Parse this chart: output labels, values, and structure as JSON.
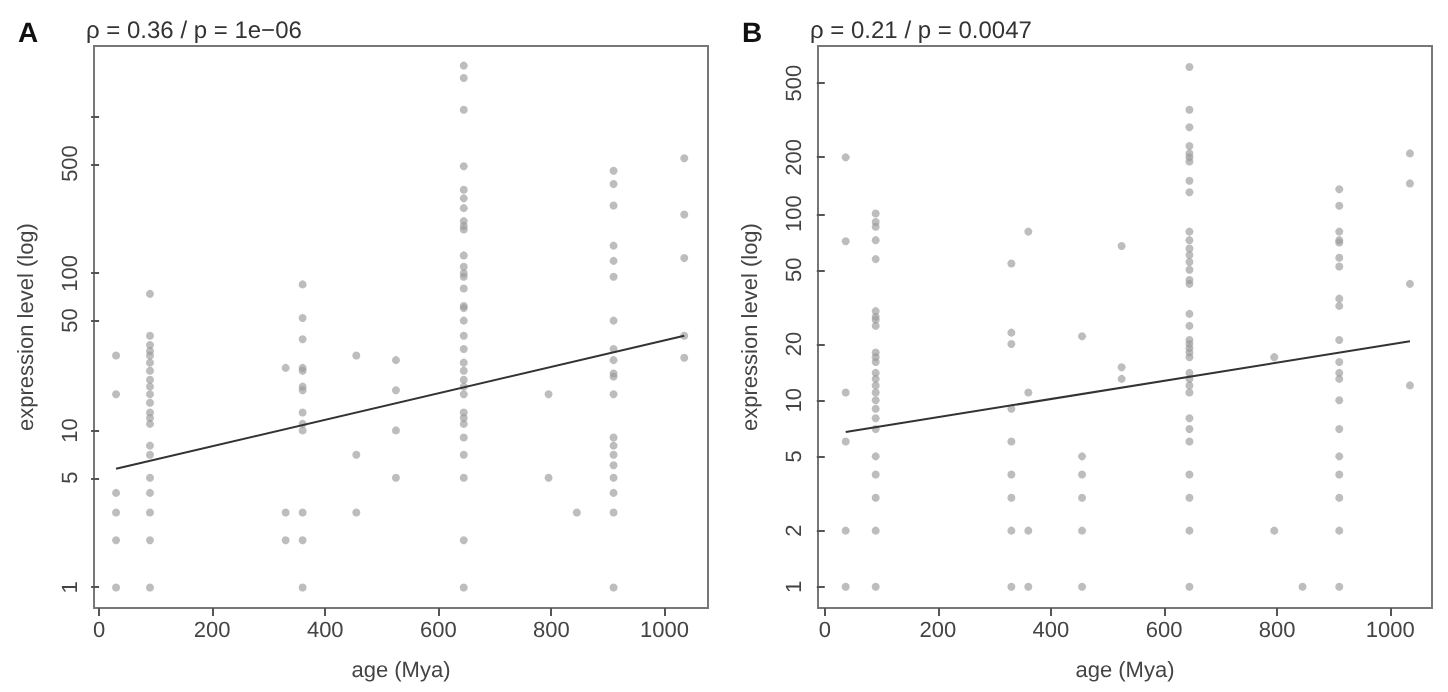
{
  "chart_data": [
    {
      "type": "scatter",
      "title": "ρ = 0.36 / p = 1e−06",
      "annotations": [
        "A"
      ],
      "xlabel": "age (Mya)",
      "ylabel": "expression level (log)",
      "log": "y",
      "grid": false,
      "xlim": [
        -9,
        1077
      ],
      "xticks": [
        0,
        200,
        400,
        600,
        800,
        1000
      ],
      "ylim": [
        0.74,
        2800
      ],
      "yticks": [
        1,
        5,
        10,
        50,
        100,
        500,
        {
          "value": 1000,
          "label": null
        }
      ],
      "series": [
        {
          "color": "#9a9a9a",
          "marker": "circle",
          "x": [
            30,
            30,
            30,
            30,
            30,
            30,
            90,
            90,
            90,
            90,
            90,
            90,
            90,
            90,
            90,
            90,
            90,
            90,
            90,
            90,
            90,
            90,
            90,
            90,
            90,
            90,
            90,
            330,
            330,
            330,
            360,
            360,
            360,
            360,
            360,
            360,
            360,
            360,
            360,
            360,
            360,
            360,
            360,
            455,
            455,
            455,
            525,
            525,
            525,
            525,
            645,
            645,
            645,
            645,
            645,
            645,
            645,
            645,
            645,
            645,
            645,
            645,
            645,
            645,
            645,
            645,
            645,
            645,
            645,
            645,
            645,
            645,
            645,
            645,
            645,
            645,
            645,
            645,
            645,
            645,
            645,
            645,
            645,
            795,
            795,
            845,
            910,
            910,
            910,
            910,
            910,
            910,
            910,
            910,
            910,
            910,
            910,
            910,
            910,
            910,
            910,
            910,
            910,
            910,
            910,
            910,
            1035,
            1035,
            1035,
            1035,
            1035
          ],
          "values": [
            1,
            2,
            3,
            4,
            17,
            30,
            1,
            2,
            3,
            4,
            5,
            7,
            8,
            11,
            12,
            13,
            15,
            17,
            19,
            21,
            24,
            27,
            30,
            32,
            35,
            40,
            74,
            2,
            3,
            25,
            1,
            2,
            3,
            10,
            11,
            13,
            18,
            19,
            24,
            25,
            38,
            52,
            85,
            3,
            7,
            30,
            5,
            10,
            18,
            28,
            1,
            2,
            5,
            7,
            9,
            11,
            12,
            13,
            17,
            19,
            21,
            24,
            27,
            33,
            40,
            50,
            60,
            62,
            80,
            95,
            100,
            110,
            130,
            190,
            200,
            215,
            260,
            300,
            340,
            480,
            1100,
            1750,
            2100,
            5,
            17,
            3,
            1,
            3,
            4,
            5,
            6,
            7,
            8,
            9,
            17,
            22,
            23,
            28,
            33,
            50,
            95,
            120,
            150,
            270,
            370,
            450,
            29,
            40,
            125,
            237,
            540
          ]
        },
        {
          "type": "line",
          "marker": "none",
          "color": "#333333",
          "x": [
            30,
            1035
          ],
          "values": [
            5.7,
            40
          ]
        }
      ]
    },
    {
      "type": "scatter",
      "title": "ρ = 0.21 / p = 0.0047",
      "annotations": [
        "B"
      ],
      "xlabel": "age (Mya)",
      "ylabel": "expression level (log)",
      "log": "y",
      "grid": false,
      "xlim": [
        -12,
        1074
      ],
      "xticks": [
        0,
        200,
        400,
        600,
        800,
        1000
      ],
      "ylim": [
        0.77,
        790
      ],
      "yticks": [
        1,
        2,
        5,
        10,
        20,
        50,
        100,
        200,
        500
      ],
      "series": [
        {
          "color": "#9a9a9a",
          "marker": "circle",
          "x": [
            37,
            37,
            37,
            37,
            37,
            37,
            90,
            90,
            90,
            90,
            90,
            90,
            90,
            90,
            90,
            90,
            90,
            90,
            90,
            90,
            90,
            90,
            90,
            90,
            90,
            90,
            90,
            90,
            90,
            90,
            90,
            330,
            330,
            330,
            330,
            330,
            330,
            330,
            330,
            330,
            360,
            360,
            360,
            360,
            455,
            455,
            455,
            455,
            455,
            455,
            525,
            525,
            525,
            645,
            645,
            645,
            645,
            645,
            645,
            645,
            645,
            645,
            645,
            645,
            645,
            645,
            645,
            645,
            645,
            645,
            645,
            645,
            645,
            645,
            645,
            645,
            645,
            645,
            645,
            645,
            645,
            645,
            645,
            645,
            645,
            645,
            645,
            645,
            795,
            795,
            845,
            910,
            910,
            910,
            910,
            910,
            910,
            910,
            910,
            910,
            910,
            910,
            910,
            910,
            910,
            910,
            910,
            910,
            910,
            910,
            910,
            1035,
            1035,
            1035,
            1035
          ],
          "values": [
            1,
            2,
            6,
            11,
            71,
            200,
            1,
            2,
            3,
            4,
            5,
            7,
            8,
            9,
            10,
            11,
            12,
            13,
            14,
            16,
            17,
            18,
            25,
            27,
            28,
            30,
            57,
            72,
            85,
            90,
            100,
            1,
            2,
            3,
            4,
            6,
            9,
            20,
            23,
            54,
            1,
            2,
            11,
            80,
            1,
            2,
            3,
            4,
            5,
            22,
            13,
            15,
            67,
            1,
            2,
            3,
            4,
            6,
            7,
            8,
            11,
            12,
            13,
            14,
            17,
            18,
            19,
            20,
            21,
            25,
            29,
            42,
            44,
            50,
            55,
            60,
            65,
            72,
            80,
            130,
            150,
            190,
            200,
            210,
            230,
            290,
            360,
            610,
            2,
            17,
            1,
            1,
            2,
            3,
            4,
            5,
            7,
            10,
            13,
            14,
            16,
            21,
            32,
            35,
            52,
            58,
            70,
            72,
            80,
            110,
            135,
            12,
            42,
            145,
            210
          ]
        },
        {
          "type": "line",
          "marker": "none",
          "color": "#333333",
          "x": [
            37,
            1035
          ],
          "values": [
            6.75,
            20.7
          ]
        }
      ]
    }
  ]
}
